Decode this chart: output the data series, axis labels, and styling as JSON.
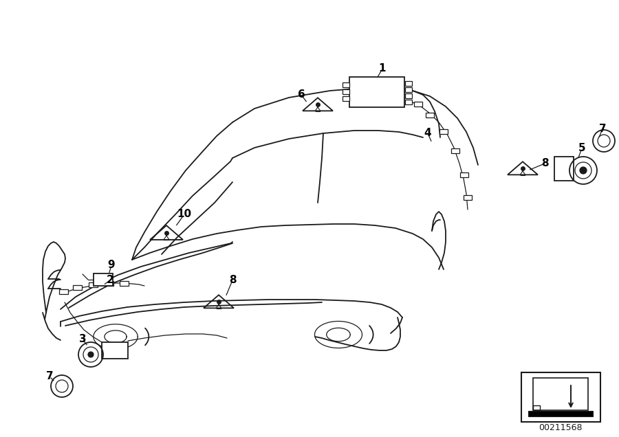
{
  "background_color": "#ffffff",
  "line_color": "#1a1a1a",
  "label_color": "#000000",
  "part_number": "00211568",
  "lw_main": 1.3,
  "lw_thin": 0.9
}
